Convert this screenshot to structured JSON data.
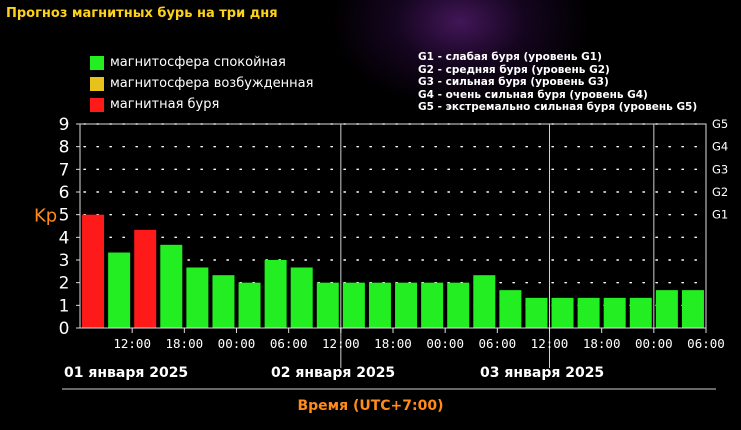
{
  "title": "Прогноз магнитных бурь на три дня",
  "legend": [
    {
      "label": "магнитосфера спокойная",
      "color": "#22ee22"
    },
    {
      "label": "магнитосфера возбужденная",
      "color": "#e6c21a"
    },
    {
      "label": "магнитная буря",
      "color": "#ff1a1a"
    }
  ],
  "g_legend": [
    "G1 - слабая буря (уровень G1)",
    "G2 - средняя буря (уровень G2)",
    "G3 - сильная буря (уровень G3)",
    "G4 - очень сильная буря (уровень G4)",
    "G5 - экстремально сильная буря (уровень G5)"
  ],
  "dates": [
    "01 января 2025",
    "02 января 2025",
    "03 января 2025"
  ],
  "chart_data": {
    "type": "bar",
    "ylabel": "Kp",
    "xlabel": "Время (UTC+7:00)",
    "ylim": [
      0,
      9
    ],
    "yticks": [
      0,
      1,
      2,
      3,
      4,
      5,
      6,
      7,
      8,
      9
    ],
    "g_levels": [
      {
        "label": "G1",
        "kp": 5
      },
      {
        "label": "G2",
        "kp": 6
      },
      {
        "label": "G3",
        "kp": 7
      },
      {
        "label": "G4",
        "kp": 8
      },
      {
        "label": "G5",
        "kp": 9
      }
    ],
    "xtick_labels": [
      "12:00",
      "18:00",
      "00:00",
      "06:00",
      "12:00",
      "18:00",
      "00:00",
      "06:00",
      "12:00",
      "18:00",
      "00:00",
      "06:00"
    ],
    "grid": true,
    "values": [
      5.0,
      3.33,
      4.33,
      3.67,
      2.67,
      2.33,
      2.0,
      3.0,
      2.67,
      2.0,
      2.0,
      2.0,
      2.0,
      2.0,
      2.0,
      2.33,
      1.67,
      1.33,
      1.33,
      1.33,
      1.33,
      1.33,
      1.67,
      1.67
    ],
    "colors": [
      "#ff1a1a",
      "#22ee22",
      "#ff1a1a",
      "#22ee22",
      "#22ee22",
      "#22ee22",
      "#22ee22",
      "#22ee22",
      "#22ee22",
      "#22ee22",
      "#22ee22",
      "#22ee22",
      "#22ee22",
      "#22ee22",
      "#22ee22",
      "#22ee22",
      "#22ee22",
      "#22ee22",
      "#22ee22",
      "#22ee22",
      "#22ee22",
      "#22ee22",
      "#22ee22",
      "#22ee22"
    ],
    "accent_color": "#ff8c1a"
  }
}
